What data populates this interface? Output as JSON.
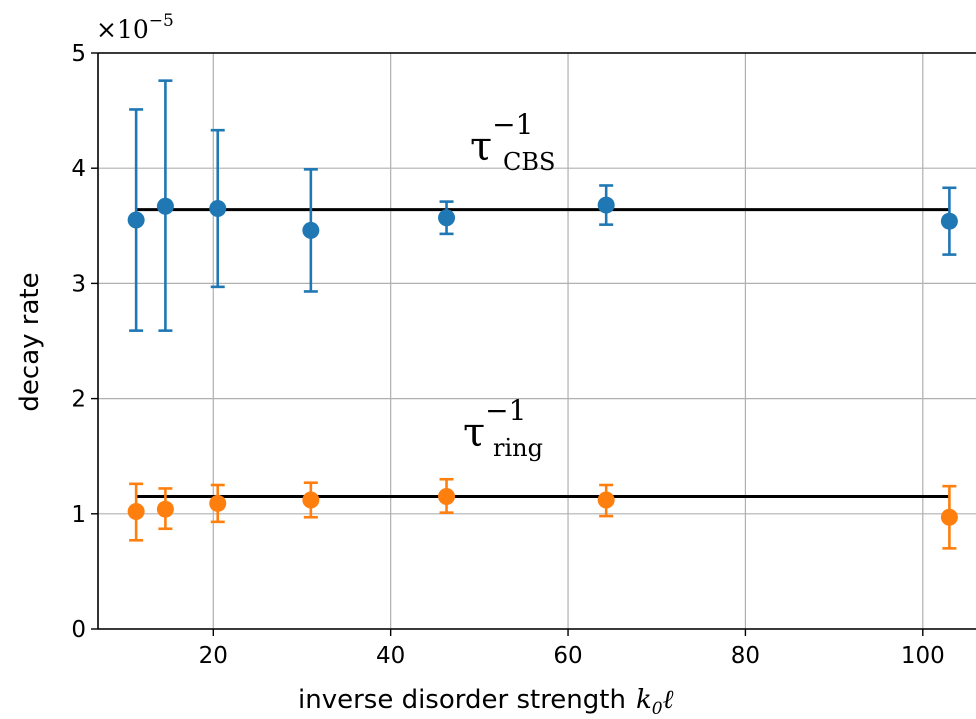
{
  "chart_data": {
    "type": "scatter",
    "xlabel": "inverse disorder strength k₀ℓ",
    "xlabel_text": "inverse disorder strength",
    "xlabel_math_base": "k",
    "xlabel_math_sub": "0",
    "xlabel_math_tail": "ℓ",
    "ylabel": "decay rate",
    "y_multiplier": {
      "base": "×10",
      "exponent": "−5"
    },
    "xlim": [
      7,
      106
    ],
    "ylim": [
      0,
      5
    ],
    "xticks": [
      20,
      40,
      60,
      80,
      100
    ],
    "yticks": [
      0,
      1,
      2,
      3,
      4,
      5
    ],
    "grid": true,
    "series": [
      {
        "name": "τ_CBS^−1",
        "label_base": "τ",
        "label_sup": "−1",
        "label_sub": "CBS",
        "color": "#1f77b4",
        "x": [
          11.3,
          14.6,
          20.5,
          31.0,
          46.3,
          64.3,
          103.0
        ],
        "y": [
          3.55,
          3.67,
          3.65,
          3.46,
          3.57,
          3.68,
          3.54
        ],
        "yerr_low": [
          2.59,
          2.59,
          2.97,
          2.93,
          3.43,
          3.51,
          3.25
        ],
        "yerr_high": [
          4.51,
          4.76,
          4.33,
          3.99,
          3.71,
          3.85,
          3.83
        ],
        "fit_y": 3.64
      },
      {
        "name": "τ_ring^−1",
        "label_base": "τ",
        "label_sup": "−1",
        "label_sub": "ring",
        "color": "#ff7f0e",
        "x": [
          11.3,
          14.6,
          20.5,
          31.0,
          46.3,
          64.3,
          103.0
        ],
        "y": [
          1.02,
          1.04,
          1.09,
          1.12,
          1.15,
          1.12,
          0.97
        ],
        "yerr_low": [
          0.77,
          0.87,
          0.93,
          0.97,
          1.01,
          0.98,
          0.7
        ],
        "yerr_high": [
          1.26,
          1.22,
          1.25,
          1.27,
          1.3,
          1.25,
          1.24
        ],
        "fit_y": 1.15
      }
    ],
    "fit_x_range": [
      11.3,
      103.0
    ],
    "fit_color": "#000000"
  }
}
